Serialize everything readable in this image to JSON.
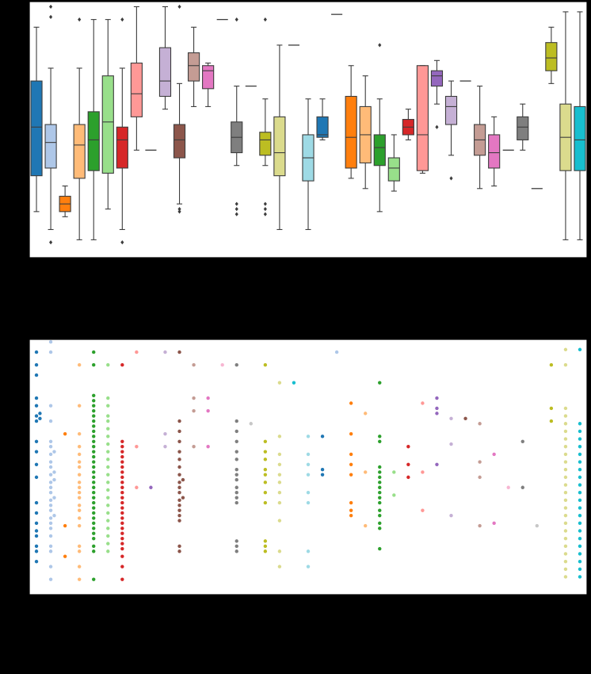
{
  "chart_data": [
    {
      "type": "box",
      "xlabel": "",
      "ylabel": "",
      "title": "",
      "ylim": [
        0,
        1
      ],
      "boxes": [
        {
          "color": "#1f77b4",
          "q1": 0.32,
          "median": 0.51,
          "q3": 0.69,
          "whislo": 0.18,
          "whishi": 0.9,
          "fliers": []
        },
        {
          "color": "#aec7e8",
          "q1": 0.35,
          "median": 0.45,
          "q3": 0.52,
          "whislo": 0.11,
          "whishi": 0.74,
          "fliers": [
            0.06,
            0.94,
            0.98
          ]
        },
        {
          "color": "#ff7f0e",
          "q1": 0.18,
          "median": 0.21,
          "q3": 0.24,
          "whislo": 0.16,
          "whishi": 0.28,
          "fliers": []
        },
        {
          "color": "#ffbb78",
          "q1": 0.31,
          "median": 0.44,
          "q3": 0.52,
          "whislo": 0.07,
          "whishi": 0.74,
          "fliers": [
            0.93
          ]
        },
        {
          "color": "#2ca02c",
          "q1": 0.34,
          "median": 0.46,
          "q3": 0.57,
          "whislo": 0.07,
          "whishi": 0.93,
          "fliers": []
        },
        {
          "color": "#98df8a",
          "q1": 0.33,
          "median": 0.53,
          "q3": 0.71,
          "whislo": 0.19,
          "whishi": 0.93,
          "fliers": []
        },
        {
          "color": "#d62728",
          "q1": 0.35,
          "median": 0.46,
          "q3": 0.51,
          "whislo": 0.11,
          "whishi": 0.74,
          "fliers": [
            0.06,
            0.93
          ]
        },
        {
          "color": "#ff9896",
          "q1": 0.55,
          "median": 0.64,
          "q3": 0.76,
          "whislo": 0.42,
          "whishi": 0.98,
          "fliers": []
        },
        {
          "color": "#9467bd",
          "flat": 0.42
        },
        {
          "color": "#c5b0d5",
          "q1": 0.63,
          "median": 0.69,
          "q3": 0.82,
          "whislo": 0.58,
          "whishi": 0.98,
          "fliers": []
        },
        {
          "color": "#8c564b",
          "q1": 0.39,
          "median": 0.46,
          "q3": 0.52,
          "whislo": 0.21,
          "whishi": 0.68,
          "fliers": [
            0.18,
            0.19,
            0.98
          ]
        },
        {
          "color": "#c49c94",
          "q1": 0.69,
          "median": 0.75,
          "q3": 0.8,
          "whislo": 0.59,
          "whishi": 0.9,
          "fliers": []
        },
        {
          "color": "#e377c2",
          "q1": 0.66,
          "median": 0.73,
          "q3": 0.75,
          "whislo": 0.59,
          "whishi": 0.76,
          "fliers": []
        },
        {
          "color": "#f7b6d2",
          "flat": 0.93
        },
        {
          "color": "#7f7f7f",
          "q1": 0.41,
          "median": 0.47,
          "q3": 0.53,
          "whislo": 0.36,
          "whishi": 0.67,
          "fliers": [
            0.17,
            0.19,
            0.21,
            0.93
          ]
        },
        {
          "color": "#c7c7c7",
          "flat": 0.67
        },
        {
          "color": "#bcbd22",
          "q1": 0.4,
          "median": 0.46,
          "q3": 0.49,
          "whislo": 0.36,
          "whishi": 0.62,
          "fliers": [
            0.17,
            0.19,
            0.21,
            0.93
          ]
        },
        {
          "color": "#dbdb8d",
          "q1": 0.32,
          "median": 0.41,
          "q3": 0.55,
          "whislo": 0.11,
          "whishi": 0.83,
          "fliers": []
        },
        {
          "color": "#17becf",
          "flat": 0.83
        },
        {
          "color": "#9edae5",
          "q1": 0.3,
          "median": 0.39,
          "q3": 0.48,
          "whislo": 0.11,
          "whishi": 0.62,
          "fliers": []
        },
        {
          "color": "#1f77b4",
          "q1": 0.47,
          "median": 0.48,
          "q3": 0.55,
          "whislo": 0.46,
          "whishi": 0.62,
          "fliers": []
        },
        {
          "color": "#aec7e8",
          "flat": 0.95
        },
        {
          "color": "#ff7f0e",
          "q1": 0.35,
          "median": 0.47,
          "q3": 0.63,
          "whislo": 0.31,
          "whishi": 0.75,
          "fliers": []
        },
        {
          "color": "#ffbb78",
          "q1": 0.37,
          "median": 0.48,
          "q3": 0.59,
          "whislo": 0.27,
          "whishi": 0.71,
          "fliers": []
        },
        {
          "color": "#2ca02c",
          "q1": 0.36,
          "median": 0.43,
          "q3": 0.48,
          "whislo": 0.18,
          "whishi": 0.62,
          "fliers": [
            0.83
          ]
        },
        {
          "color": "#98df8a",
          "q1": 0.3,
          "median": 0.35,
          "q3": 0.39,
          "whislo": 0.26,
          "whishi": 0.48,
          "fliers": []
        },
        {
          "color": "#d62728",
          "q1": 0.48,
          "median": 0.51,
          "q3": 0.54,
          "whislo": 0.46,
          "whishi": 0.58,
          "fliers": []
        },
        {
          "color": "#ff9896",
          "q1": 0.34,
          "median": 0.48,
          "q3": 0.75,
          "whislo": 0.33,
          "whishi": 0.75,
          "fliers": []
        },
        {
          "color": "#9467bd",
          "q1": 0.67,
          "median": 0.71,
          "q3": 0.73,
          "whislo": 0.6,
          "whishi": 0.77,
          "fliers": [
            0.51
          ]
        },
        {
          "color": "#c5b0d5",
          "q1": 0.52,
          "median": 0.59,
          "q3": 0.63,
          "whislo": 0.4,
          "whishi": 0.69,
          "fliers": [
            0.31
          ]
        },
        {
          "color": "#8c564b",
          "flat": 0.69
        },
        {
          "color": "#c49c94",
          "q1": 0.4,
          "median": 0.46,
          "q3": 0.52,
          "whislo": 0.27,
          "whishi": 0.67,
          "fliers": []
        },
        {
          "color": "#e377c2",
          "q1": 0.35,
          "median": 0.41,
          "q3": 0.48,
          "whislo": 0.28,
          "whishi": 0.55,
          "fliers": []
        },
        {
          "color": "#f7b6d2",
          "flat": 0.42
        },
        {
          "color": "#7f7f7f",
          "q1": 0.46,
          "median": 0.51,
          "q3": 0.55,
          "whislo": 0.42,
          "whishi": 0.6,
          "fliers": []
        },
        {
          "color": "#c7c7c7",
          "flat": 0.27
        },
        {
          "color": "#bcbd22",
          "q1": 0.73,
          "median": 0.78,
          "q3": 0.84,
          "whislo": 0.68,
          "whishi": 0.9,
          "fliers": []
        },
        {
          "color": "#dbdb8d",
          "q1": 0.34,
          "median": 0.47,
          "q3": 0.6,
          "whislo": 0.07,
          "whishi": 0.96,
          "fliers": []
        },
        {
          "color": "#17becf",
          "q1": 0.34,
          "median": 0.46,
          "q3": 0.59,
          "whislo": 0.07,
          "whishi": 0.96,
          "fliers": []
        }
      ]
    },
    {
      "type": "scatter",
      "xlabel": "",
      "ylabel": "",
      "title": "",
      "ylim": [
        0,
        1
      ],
      "columns": [
        {
          "color": "#1f77b4",
          "values": [
            0.13,
            0.17,
            0.19,
            0.23,
            0.25,
            0.28,
            0.32,
            0.36,
            0.46,
            0.51,
            0.56,
            0.6,
            0.68,
            0.69,
            0.7,
            0.71,
            0.74,
            0.77,
            0.86,
            0.9,
            0.95
          ]
        },
        {
          "color": "#aec7e8",
          "values": [
            0.06,
            0.11,
            0.17,
            0.19,
            0.23,
            0.26,
            0.28,
            0.3,
            0.31,
            0.33,
            0.35,
            0.37,
            0.38,
            0.4,
            0.42,
            0.44,
            0.45,
            0.47,
            0.48,
            0.5,
            0.52,
            0.55,
            0.56,
            0.58,
            0.6,
            0.68,
            0.74,
            0.95,
            0.99
          ]
        },
        {
          "color": "#ff7f0e",
          "values": [
            0.15,
            0.27,
            0.63
          ]
        },
        {
          "color": "#ffbb78",
          "values": [
            0.06,
            0.11,
            0.17,
            0.19,
            0.27,
            0.3,
            0.33,
            0.35,
            0.38,
            0.4,
            0.42,
            0.44,
            0.47,
            0.5,
            0.52,
            0.55,
            0.58,
            0.63,
            0.74,
            0.9
          ]
        },
        {
          "color": "#2ca02c",
          "values": [
            0.06,
            0.17,
            0.19,
            0.22,
            0.24,
            0.26,
            0.28,
            0.3,
            0.32,
            0.34,
            0.36,
            0.38,
            0.4,
            0.42,
            0.44,
            0.46,
            0.48,
            0.5,
            0.52,
            0.54,
            0.56,
            0.58,
            0.6,
            0.62,
            0.64,
            0.66,
            0.68,
            0.7,
            0.72,
            0.74,
            0.76,
            0.78,
            0.9,
            0.95
          ]
        },
        {
          "color": "#98df8a",
          "values": [
            0.17,
            0.2,
            0.23,
            0.26,
            0.29,
            0.32,
            0.35,
            0.38,
            0.41,
            0.44,
            0.47,
            0.5,
            0.53,
            0.56,
            0.59,
            0.62,
            0.65,
            0.68,
            0.7,
            0.74,
            0.77,
            0.9
          ]
        },
        {
          "color": "#d62728",
          "values": [
            0.06,
            0.11,
            0.15,
            0.18,
            0.2,
            0.22,
            0.24,
            0.26,
            0.28,
            0.3,
            0.32,
            0.34,
            0.36,
            0.38,
            0.4,
            0.42,
            0.44,
            0.46,
            0.48,
            0.5,
            0.52,
            0.54,
            0.56,
            0.58,
            0.6,
            0.9
          ]
        },
        {
          "color": "#ff9896",
          "values": [
            0.42,
            0.58,
            0.95
          ]
        },
        {
          "color": "#9467bd",
          "values": [
            0.42
          ]
        },
        {
          "color": "#c5b0d5",
          "values": [
            0.58,
            0.63,
            0.95
          ]
        },
        {
          "color": "#8c564b",
          "values": [
            0.17,
            0.19,
            0.29,
            0.31,
            0.33,
            0.35,
            0.37,
            0.38,
            0.4,
            0.42,
            0.44,
            0.45,
            0.47,
            0.5,
            0.53,
            0.56,
            0.6,
            0.64,
            0.68,
            0.95
          ]
        },
        {
          "color": "#c49c94",
          "values": [
            0.58,
            0.72,
            0.77,
            0.9
          ]
        },
        {
          "color": "#e377c2",
          "values": [
            0.58,
            0.72,
            0.77
          ]
        },
        {
          "color": "#f7b6d2",
          "values": [
            0.9
          ]
        },
        {
          "color": "#7f7f7f",
          "values": [
            0.17,
            0.19,
            0.21,
            0.36,
            0.38,
            0.4,
            0.42,
            0.45,
            0.47,
            0.49,
            0.53,
            0.56,
            0.6,
            0.64,
            0.68,
            0.9
          ]
        },
        {
          "color": "#c7c7c7",
          "values": [
            0.67
          ]
        },
        {
          "color": "#bcbd22",
          "values": [
            0.17,
            0.19,
            0.21,
            0.36,
            0.4,
            0.44,
            0.47,
            0.49,
            0.53,
            0.56,
            0.6,
            0.9
          ]
        },
        {
          "color": "#dbdb8d",
          "values": [
            0.11,
            0.17,
            0.29,
            0.36,
            0.4,
            0.44,
            0.47,
            0.51,
            0.55,
            0.62,
            0.83
          ]
        },
        {
          "color": "#17becf",
          "values": [
            0.83
          ]
        },
        {
          "color": "#9edae5",
          "values": [
            0.11,
            0.17,
            0.36,
            0.4,
            0.47,
            0.51,
            0.55,
            0.62
          ]
        },
        {
          "color": "#1f77b4",
          "values": [
            0.47,
            0.49,
            0.62
          ]
        },
        {
          "color": "#aec7e8",
          "values": [
            0.95
          ]
        },
        {
          "color": "#ff7f0e",
          "values": [
            0.31,
            0.33,
            0.36,
            0.47,
            0.51,
            0.55,
            0.63,
            0.75
          ]
        },
        {
          "color": "#ffbb78",
          "values": [
            0.27,
            0.48,
            0.71
          ]
        },
        {
          "color": "#2ca02c",
          "values": [
            0.18,
            0.26,
            0.28,
            0.31,
            0.33,
            0.36,
            0.38,
            0.4,
            0.42,
            0.44,
            0.46,
            0.48,
            0.5,
            0.6,
            0.62,
            0.83
          ]
        },
        {
          "color": "#98df8a",
          "values": [
            0.39,
            0.48
          ]
        },
        {
          "color": "#d62728",
          "values": [
            0.46,
            0.51,
            0.58
          ]
        },
        {
          "color": "#ff9896",
          "values": [
            0.33,
            0.48,
            0.75
          ]
        },
        {
          "color": "#9467bd",
          "values": [
            0.51,
            0.71,
            0.73,
            0.77
          ]
        },
        {
          "color": "#c5b0d5",
          "values": [
            0.31,
            0.59,
            0.69
          ]
        },
        {
          "color": "#8c564b",
          "values": [
            0.69
          ]
        },
        {
          "color": "#c49c94",
          "values": [
            0.27,
            0.46,
            0.52,
            0.67
          ]
        },
        {
          "color": "#e377c2",
          "values": [
            0.28,
            0.55
          ]
        },
        {
          "color": "#f7b6d2",
          "values": [
            0.42
          ]
        },
        {
          "color": "#7f7f7f",
          "values": [
            0.42,
            0.6
          ]
        },
        {
          "color": "#c7c7c7",
          "values": [
            0.27
          ]
        },
        {
          "color": "#bcbd22",
          "values": [
            0.68,
            0.73,
            0.9
          ]
        },
        {
          "color": "#dbdb8d",
          "values": [
            0.07,
            0.1,
            0.13,
            0.16,
            0.19,
            0.22,
            0.25,
            0.28,
            0.31,
            0.34,
            0.37,
            0.4,
            0.43,
            0.46,
            0.49,
            0.52,
            0.55,
            0.58,
            0.61,
            0.64,
            0.67,
            0.7,
            0.73,
            0.9,
            0.96
          ]
        },
        {
          "color": "#17becf",
          "values": [
            0.07,
            0.1,
            0.13,
            0.16,
            0.19,
            0.22,
            0.25,
            0.28,
            0.31,
            0.34,
            0.37,
            0.4,
            0.43,
            0.46,
            0.49,
            0.52,
            0.55,
            0.58,
            0.61,
            0.64,
            0.67,
            0.96
          ]
        }
      ]
    }
  ]
}
